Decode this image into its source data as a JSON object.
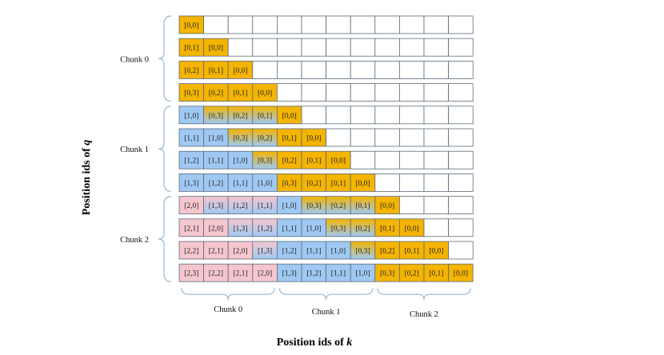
{
  "colors": {
    "orange": "#f4b400",
    "blue": "#9fc9f2",
    "pink": "#f6c6cf",
    "grid_border": "#5b6b7a",
    "bracket": "#9ab8d4"
  },
  "row_chunk_labels": [
    "Chunk 0",
    "Chunk 1",
    "Chunk 2"
  ],
  "col_chunk_labels": [
    "Chunk 0",
    "Chunk 1",
    "Chunk 2"
  ],
  "axis": {
    "y_title_prefix": "Position ids of ",
    "y_var": "q",
    "x_title_prefix": "Position ids of ",
    "x_var": "k"
  },
  "rows": [
    [
      [
        "[0,0]",
        "o"
      ]
    ],
    [
      [
        "[0,1]",
        "o"
      ],
      [
        "[0,0]",
        "o"
      ]
    ],
    [
      [
        "[0,2]",
        "o"
      ],
      [
        "[0,1]",
        "o"
      ],
      [
        "[0,0]",
        "o"
      ]
    ],
    [
      [
        "[0,3]",
        "o"
      ],
      [
        "[0,2]",
        "o"
      ],
      [
        "[0,1]",
        "o"
      ],
      [
        "[0,0]",
        "o"
      ]
    ],
    [
      [
        "[1,0]",
        "b"
      ],
      [
        "[0,3]",
        "g"
      ],
      [
        "[0,2]",
        "g"
      ],
      [
        "[0,1]",
        "g"
      ],
      [
        "[0,0]",
        "o"
      ]
    ],
    [
      [
        "[1,1]",
        "b"
      ],
      [
        "[1,0]",
        "b"
      ],
      [
        "[0,3]",
        "g"
      ],
      [
        "[0,2]",
        "g"
      ],
      [
        "[0,1]",
        "o"
      ],
      [
        "[0,0]",
        "o"
      ]
    ],
    [
      [
        "[1,2]",
        "b"
      ],
      [
        "[1,1]",
        "b"
      ],
      [
        "[1,0]",
        "b"
      ],
      [
        "[0,3]",
        "g"
      ],
      [
        "[0,2]",
        "o"
      ],
      [
        "[0,1]",
        "o"
      ],
      [
        "[0,0]",
        "o"
      ]
    ],
    [
      [
        "[1,3]",
        "b"
      ],
      [
        "[1,2]",
        "b"
      ],
      [
        "[1,1]",
        "b"
      ],
      [
        "[1,0]",
        "b"
      ],
      [
        "[0,3]",
        "o"
      ],
      [
        "[0,2]",
        "o"
      ],
      [
        "[0,1]",
        "o"
      ],
      [
        "[0,0]",
        "o"
      ]
    ],
    [
      [
        "[2,0]",
        "p"
      ],
      [
        "[1,3]",
        "pb"
      ],
      [
        "[1,2]",
        "pb"
      ],
      [
        "[1,1]",
        "pb"
      ],
      [
        "[1,0]",
        "b"
      ],
      [
        "[0,3]",
        "g"
      ],
      [
        "[0,2]",
        "g"
      ],
      [
        "[0,1]",
        "g"
      ],
      [
        "[0,0]",
        "o"
      ]
    ],
    [
      [
        "[2,1]",
        "p"
      ],
      [
        "[2,0]",
        "p"
      ],
      [
        "[1,3]",
        "pb"
      ],
      [
        "[1,2]",
        "pb"
      ],
      [
        "[1,1]",
        "b"
      ],
      [
        "[1,0]",
        "b"
      ],
      [
        "[0,3]",
        "g"
      ],
      [
        "[0,2]",
        "g"
      ],
      [
        "[0,1]",
        "o"
      ],
      [
        "[0,0]",
        "o"
      ]
    ],
    [
      [
        "[2,2]",
        "p"
      ],
      [
        "[2,1]",
        "p"
      ],
      [
        "[2,0]",
        "p"
      ],
      [
        "[1,3]",
        "pb"
      ],
      [
        "[1,2]",
        "b"
      ],
      [
        "[1,1]",
        "b"
      ],
      [
        "[1,0]",
        "b"
      ],
      [
        "[0,3]",
        "g"
      ],
      [
        "[0,2]",
        "o"
      ],
      [
        "[0,1]",
        "o"
      ],
      [
        "[0,0]",
        "o"
      ]
    ],
    [
      [
        "[2,3]",
        "p"
      ],
      [
        "[2,2]",
        "p"
      ],
      [
        "[2,1]",
        "p"
      ],
      [
        "[2,0]",
        "p"
      ],
      [
        "[1,3]",
        "b"
      ],
      [
        "[1,2]",
        "b"
      ],
      [
        "[1,1]",
        "b"
      ],
      [
        "[1,0]",
        "b"
      ],
      [
        "[0,3]",
        "o"
      ],
      [
        "[0,2]",
        "o"
      ],
      [
        "[0,1]",
        "o"
      ],
      [
        "[0,0]",
        "o"
      ]
    ]
  ]
}
